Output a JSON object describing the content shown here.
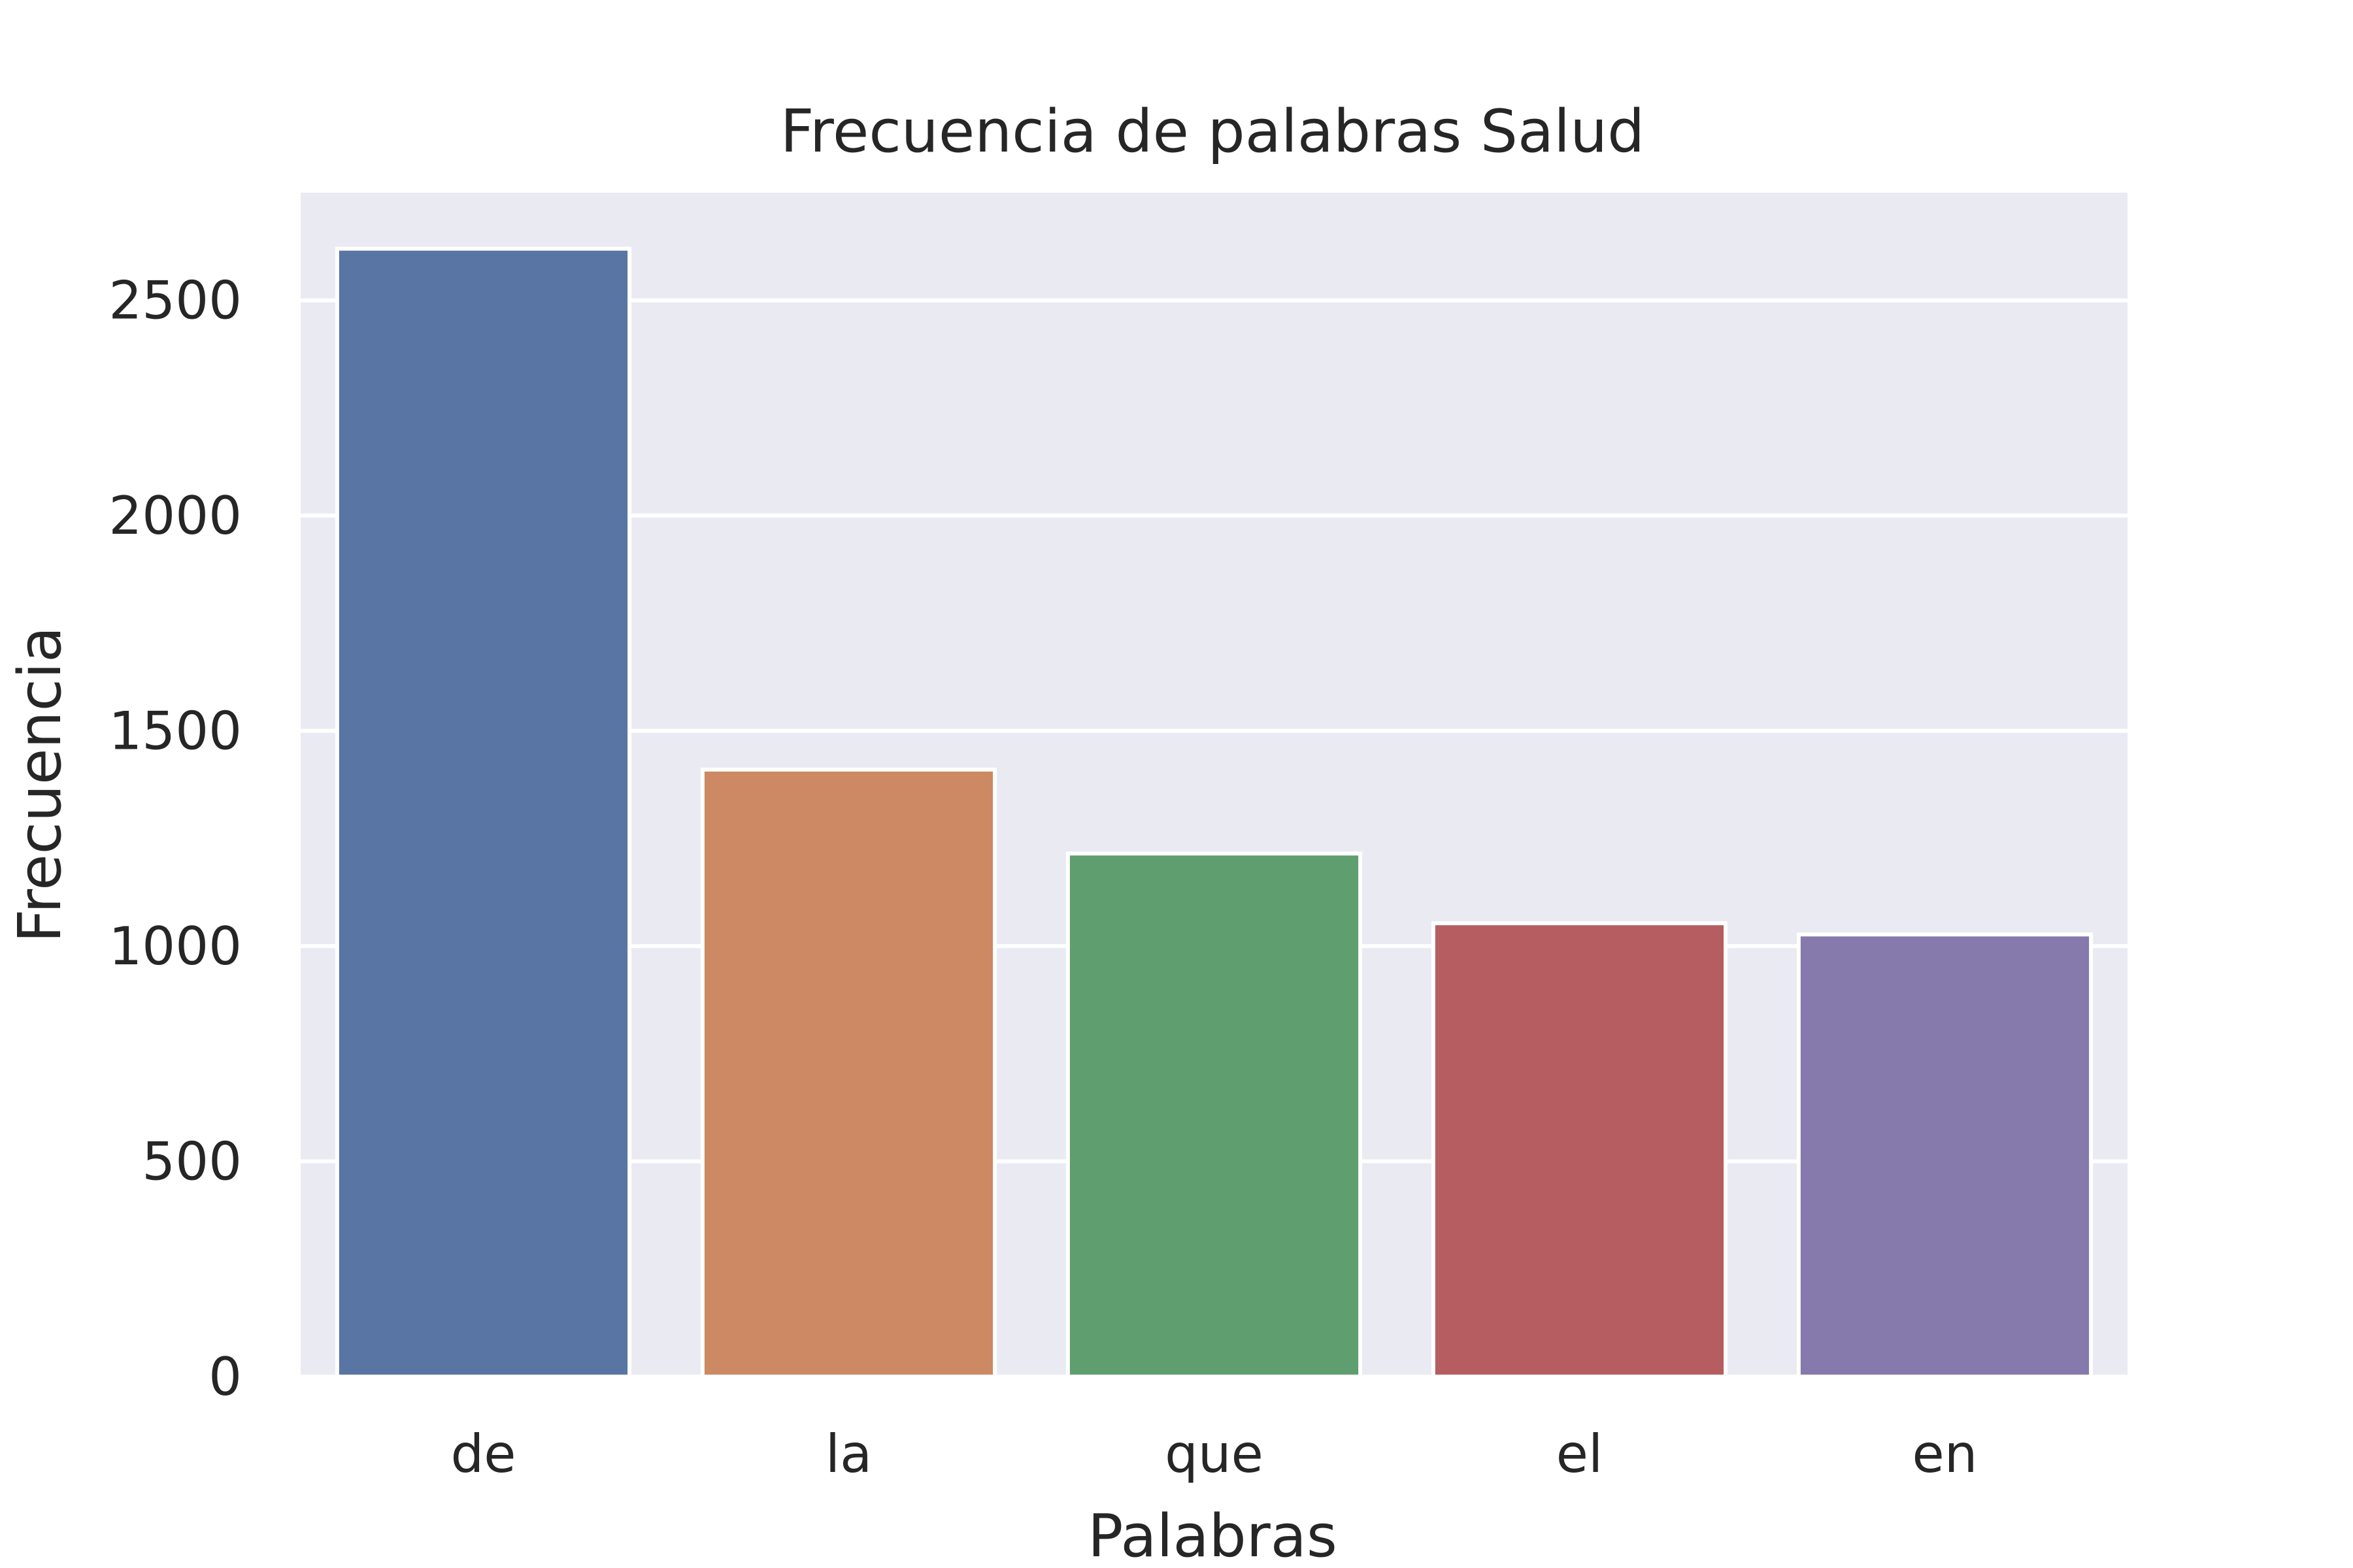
{
  "chart_data": {
    "type": "bar",
    "title": "Frecuencia de palabras Salud",
    "xlabel": "Palabras",
    "ylabel": "Frecuencia",
    "categories": [
      "de",
      "la",
      "que",
      "el",
      "en"
    ],
    "values": [
      2620,
      1410,
      1215,
      1053,
      1027
    ],
    "colors": [
      "#5975a4",
      "#cc8963",
      "#5f9e6e",
      "#b55d60",
      "#857aab"
    ],
    "ylim": [
      0,
      2750
    ],
    "yticks": [
      0,
      500,
      1000,
      1500,
      2000,
      2500
    ],
    "grid": true,
    "background": "#eaeaf2"
  }
}
